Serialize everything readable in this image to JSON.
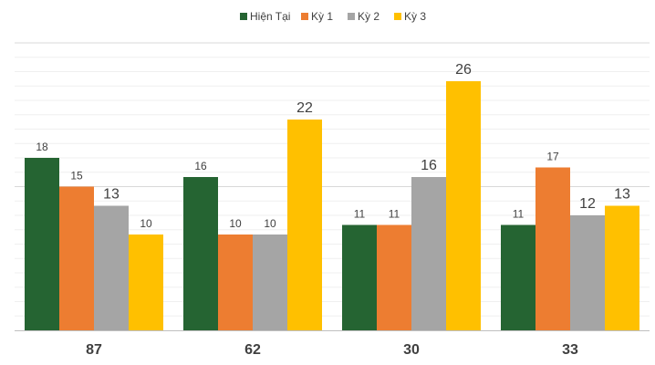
{
  "chart_data": {
    "type": "bar",
    "categories": [
      "87",
      "62",
      "30",
      "33"
    ],
    "series": [
      {
        "name": "Hiện Tại",
        "values": [
          18,
          16,
          11,
          11
        ],
        "color": "#256432"
      },
      {
        "name": "Kỳ 1",
        "values": [
          15,
          10,
          11,
          17
        ],
        "color": "#ED7D31"
      },
      {
        "name": "Kỳ 2",
        "values": [
          13,
          10,
          16,
          12
        ],
        "color": "#A5A5A5"
      },
      {
        "name": "Kỳ 3",
        "values": [
          10,
          22,
          26,
          13
        ],
        "color": "#FFC000"
      }
    ],
    "ylim": [
      0,
      30
    ],
    "grid": true,
    "legend_position": "top-center",
    "title": "",
    "xlabel": "",
    "ylabel": ""
  }
}
